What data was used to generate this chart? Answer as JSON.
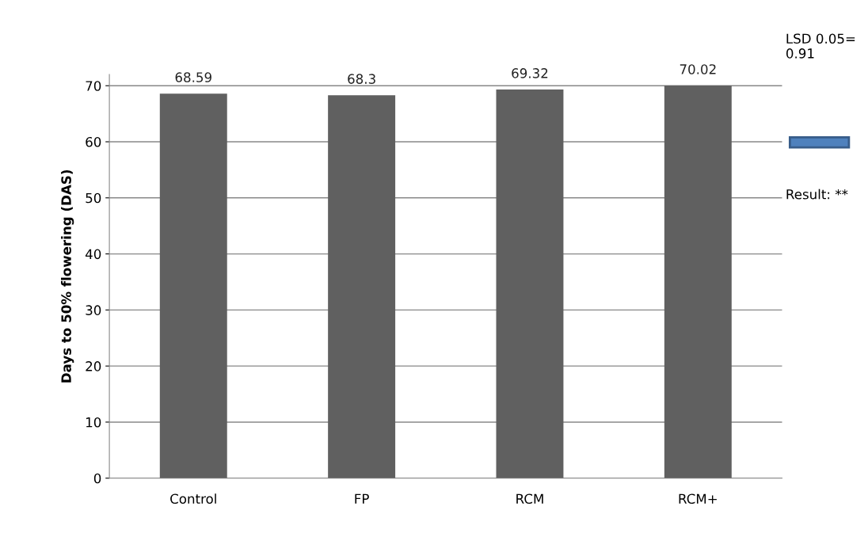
{
  "chart_data": {
    "type": "bar",
    "ylabel": "Days to 50% flowering (DAS)",
    "categories": [
      "Control",
      "FP",
      "RCM",
      "RCM+"
    ],
    "values": [
      68.59,
      68.3,
      69.32,
      70.02
    ],
    "color": "#606060",
    "ylim": [
      0,
      72
    ],
    "yticks": [
      0,
      10,
      20,
      30,
      40,
      50,
      60,
      70
    ],
    "grid": "y",
    "data_labels": true,
    "annotations": [
      "LSD 0.05=\n0.91",
      "Result: **"
    ]
  }
}
